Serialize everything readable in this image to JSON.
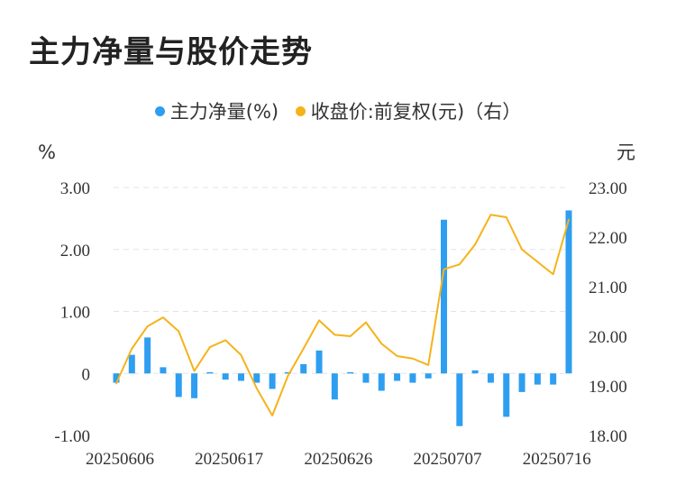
{
  "title": "主力净量与股价走势",
  "chart_data": {
    "type": "bar+line",
    "legend": {
      "position": "top",
      "items": [
        {
          "label": "主力净量(%)",
          "color": "#2e9ef0"
        },
        {
          "label": "收盘价:前复权(元)（右）",
          "color": "#f5b31a"
        }
      ]
    },
    "left_axis": {
      "unit": "%",
      "ticks": [
        "3.00",
        "2.00",
        "1.00",
        "0",
        "-1.00"
      ],
      "range": [
        -1,
        3
      ]
    },
    "right_axis": {
      "unit": "元",
      "ticks": [
        "23.00",
        "22.00",
        "21.00",
        "20.00",
        "19.00",
        "18.00"
      ],
      "range": [
        18,
        23
      ]
    },
    "x_tick_labels": [
      "20250606",
      "20250617",
      "20250626",
      "20250707",
      "20250716"
    ],
    "x_tick_positions": [
      0,
      7,
      14,
      21,
      28
    ],
    "grid": true,
    "series": [
      {
        "name": "主力净量(%)",
        "type": "bar",
        "axis": "left",
        "values": [
          -0.15,
          0.3,
          0.58,
          0.1,
          -0.38,
          -0.4,
          0.02,
          -0.1,
          -0.12,
          -0.15,
          -0.25,
          0.02,
          0.15,
          0.37,
          -0.42,
          0.02,
          -0.15,
          -0.28,
          -0.12,
          -0.15,
          -0.08,
          2.48,
          -0.85,
          0.05,
          -0.15,
          -0.7,
          -0.3,
          -0.18,
          -0.18,
          2.63
        ]
      },
      {
        "name": "收盘价:前复权(元)（右）",
        "type": "line",
        "axis": "right",
        "values": [
          19.05,
          19.75,
          20.2,
          20.38,
          20.1,
          19.3,
          19.78,
          19.92,
          19.62,
          18.95,
          18.4,
          19.2,
          19.75,
          20.32,
          20.03,
          20.0,
          20.28,
          19.85,
          19.6,
          19.55,
          19.42,
          21.35,
          21.45,
          21.85,
          22.45,
          22.4,
          21.75,
          21.5,
          21.25,
          22.35
        ]
      }
    ]
  }
}
